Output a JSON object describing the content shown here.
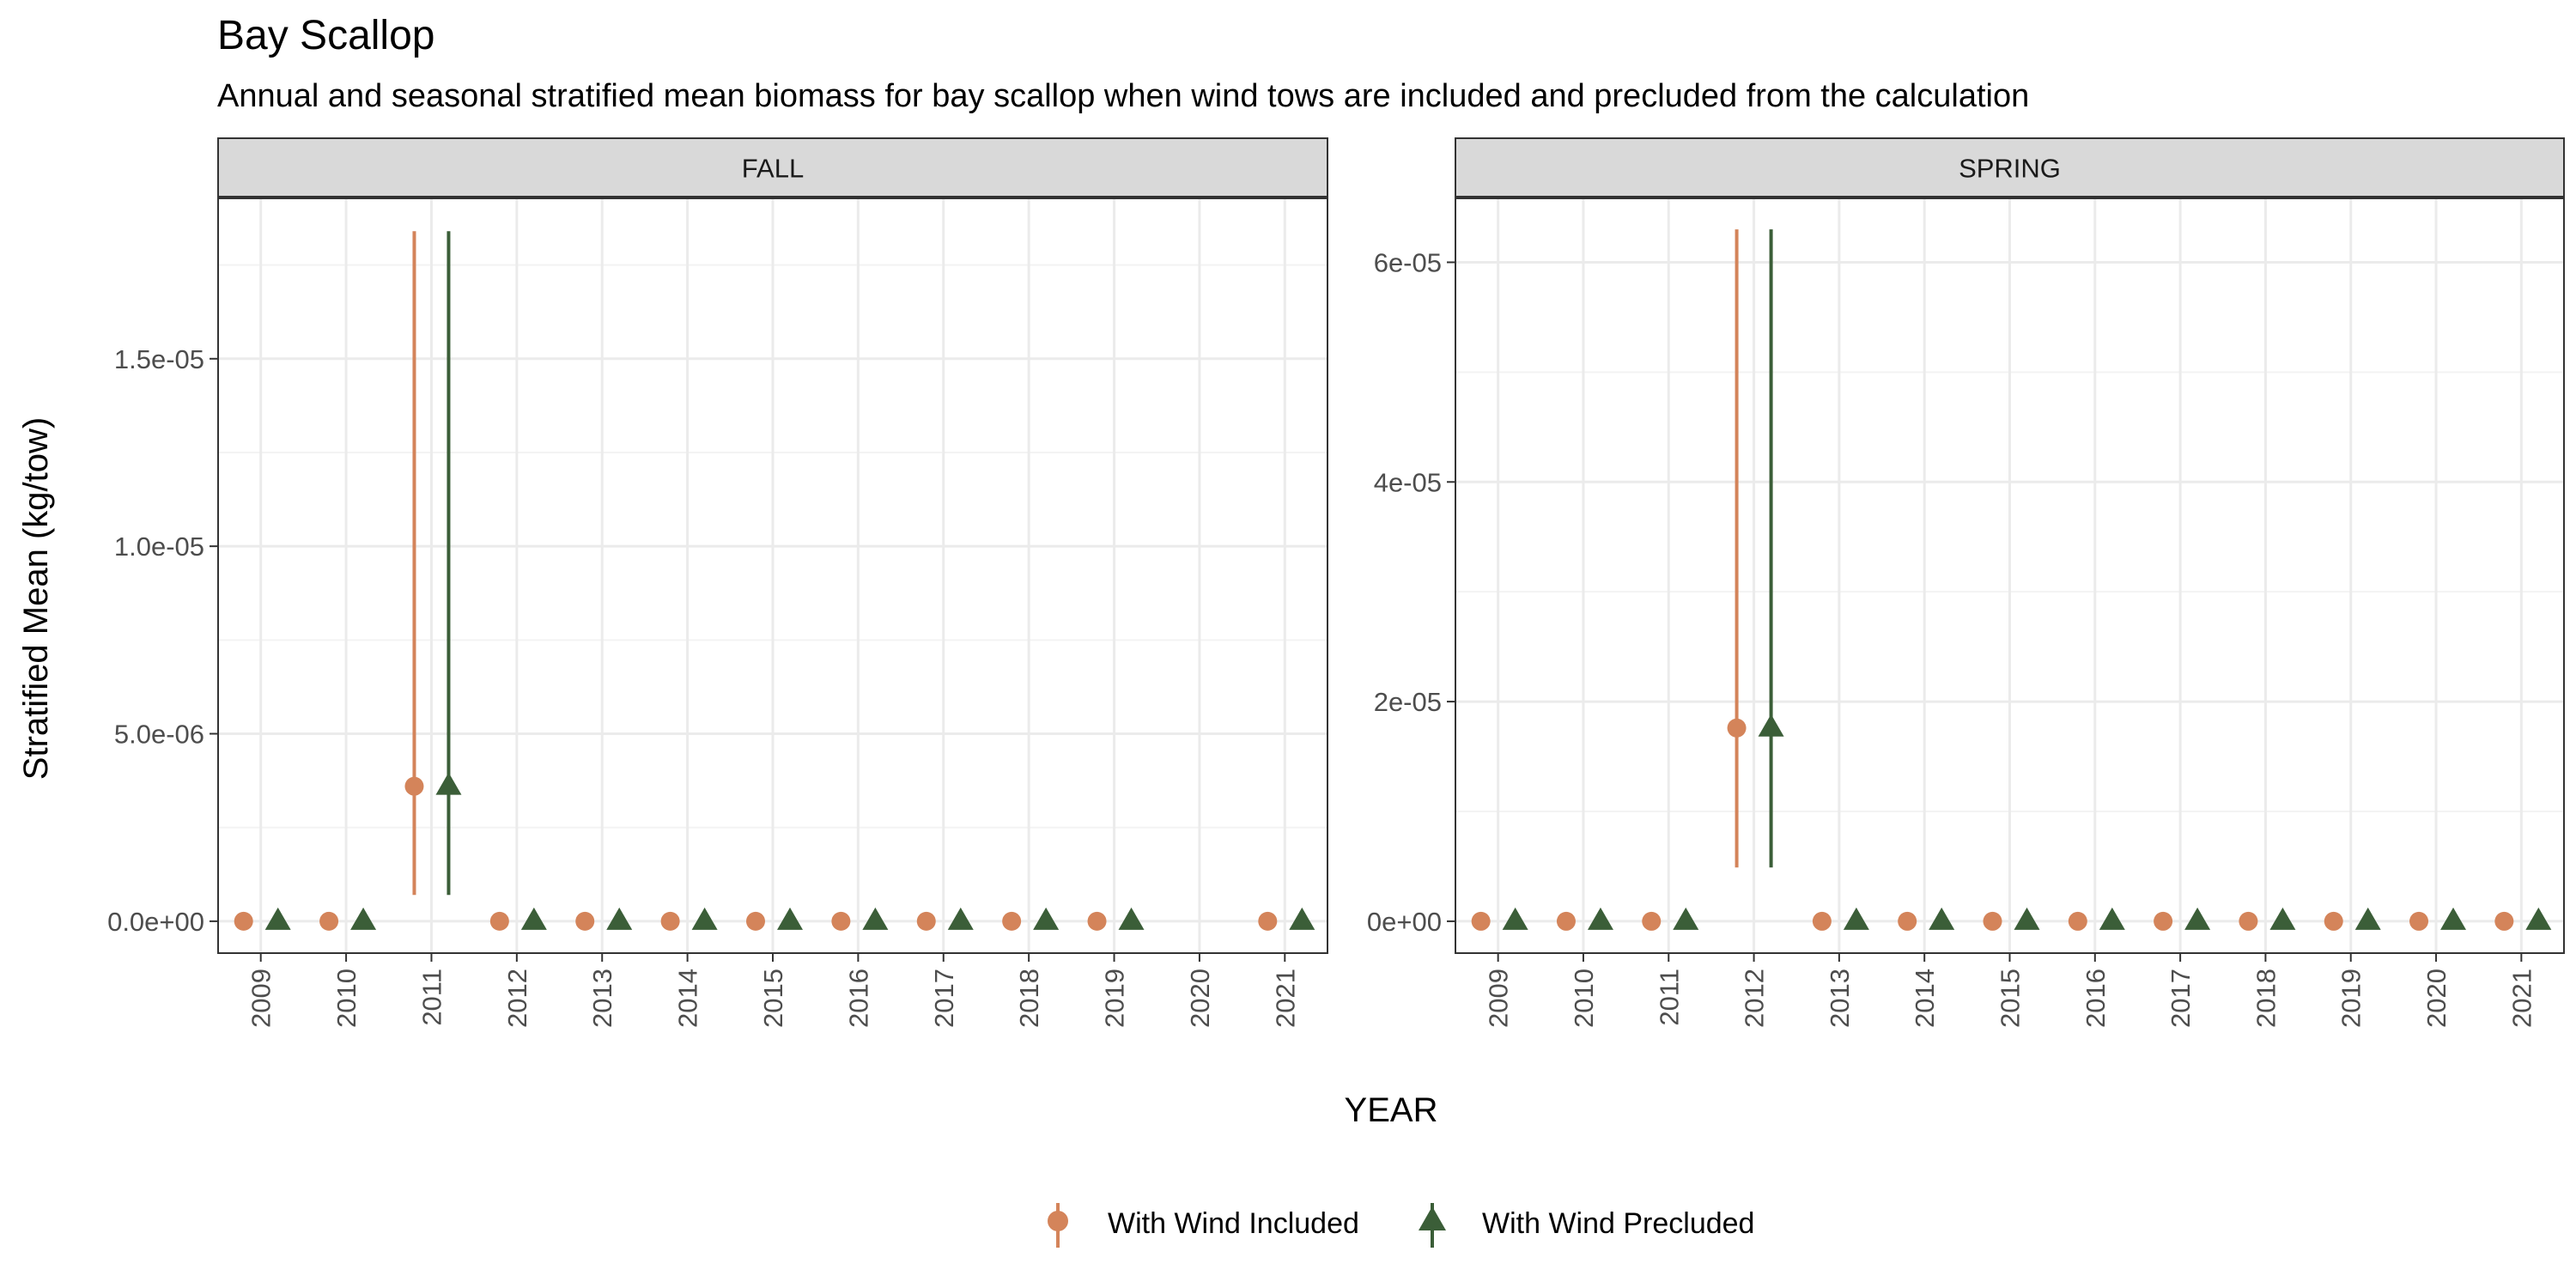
{
  "chart_data": {
    "type": "scatter",
    "title": "Bay Scallop",
    "subtitle": "Annual and seasonal stratified mean biomass for bay scallop when wind tows are included and precluded from the calculation",
    "xlabel": "YEAR",
    "ylabel": "Stratified Mean (kg/tow)",
    "grid": true,
    "legend_position": "bottom",
    "legend": [
      {
        "label": "With Wind Included",
        "color": "#D4845A",
        "shape": "circle"
      },
      {
        "label": "With Wind Precluded",
        "color": "#3B5E38",
        "shape": "triangle"
      }
    ],
    "panels": [
      {
        "name": "FALL",
        "x_categories": [
          "2009",
          "2010",
          "2011",
          "2012",
          "2013",
          "2014",
          "2015",
          "2016",
          "2017",
          "2018",
          "2019",
          "2020",
          "2021"
        ],
        "ylim": [
          -8.5e-07,
          1.93e-05
        ],
        "yticks": [
          {
            "value": 0,
            "label": "0.0e+00"
          },
          {
            "value": 5e-06,
            "label": "5.0e-06"
          },
          {
            "value": 1e-05,
            "label": "1.0e-05"
          },
          {
            "value": 1.5e-05,
            "label": "1.5e-05"
          }
        ],
        "series": [
          {
            "name": "With Wind Included",
            "points": [
              {
                "x": "2009",
                "y": 0
              },
              {
                "x": "2010",
                "y": 0
              },
              {
                "x": "2011",
                "y": 3.6e-06,
                "lo": 7e-07,
                "hi": 1.84e-05
              },
              {
                "x": "2012",
                "y": 0
              },
              {
                "x": "2013",
                "y": 0
              },
              {
                "x": "2014",
                "y": 0
              },
              {
                "x": "2015",
                "y": 0
              },
              {
                "x": "2016",
                "y": 0
              },
              {
                "x": "2017",
                "y": 0
              },
              {
                "x": "2018",
                "y": 0
              },
              {
                "x": "2019",
                "y": 0
              },
              {
                "x": "2021",
                "y": 0
              }
            ]
          },
          {
            "name": "With Wind Precluded",
            "points": [
              {
                "x": "2009",
                "y": 0
              },
              {
                "x": "2010",
                "y": 0
              },
              {
                "x": "2011",
                "y": 3.6e-06,
                "lo": 7e-07,
                "hi": 1.84e-05
              },
              {
                "x": "2012",
                "y": 0
              },
              {
                "x": "2013",
                "y": 0
              },
              {
                "x": "2014",
                "y": 0
              },
              {
                "x": "2015",
                "y": 0
              },
              {
                "x": "2016",
                "y": 0
              },
              {
                "x": "2017",
                "y": 0
              },
              {
                "x": "2018",
                "y": 0
              },
              {
                "x": "2019",
                "y": 0
              },
              {
                "x": "2021",
                "y": 0
              }
            ]
          }
        ]
      },
      {
        "name": "SPRING",
        "x_categories": [
          "2009",
          "2010",
          "2011",
          "2012",
          "2013",
          "2014",
          "2015",
          "2016",
          "2017",
          "2018",
          "2019",
          "2020",
          "2021"
        ],
        "ylim": [
          -2.9e-06,
          6.59e-05
        ],
        "yticks": [
          {
            "value": 0,
            "label": "0e+00"
          },
          {
            "value": 2e-05,
            "label": "2e-05"
          },
          {
            "value": 4e-05,
            "label": "4e-05"
          },
          {
            "value": 6e-05,
            "label": "6e-05"
          }
        ],
        "series": [
          {
            "name": "With Wind Included",
            "points": [
              {
                "x": "2009",
                "y": 0
              },
              {
                "x": "2010",
                "y": 0
              },
              {
                "x": "2011",
                "y": 0
              },
              {
                "x": "2012",
                "y": 1.76e-05,
                "lo": 4.9e-06,
                "hi": 6.3e-05
              },
              {
                "x": "2013",
                "y": 0
              },
              {
                "x": "2014",
                "y": 0
              },
              {
                "x": "2015",
                "y": 0
              },
              {
                "x": "2016",
                "y": 0
              },
              {
                "x": "2017",
                "y": 0
              },
              {
                "x": "2018",
                "y": 0
              },
              {
                "x": "2019",
                "y": 0
              },
              {
                "x": "2020",
                "y": 0
              },
              {
                "x": "2021",
                "y": 0
              }
            ]
          },
          {
            "name": "With Wind Precluded",
            "points": [
              {
                "x": "2009",
                "y": 0
              },
              {
                "x": "2010",
                "y": 0
              },
              {
                "x": "2011",
                "y": 0
              },
              {
                "x": "2012",
                "y": 1.76e-05,
                "lo": 4.9e-06,
                "hi": 6.3e-05
              },
              {
                "x": "2013",
                "y": 0
              },
              {
                "x": "2014",
                "y": 0
              },
              {
                "x": "2015",
                "y": 0
              },
              {
                "x": "2016",
                "y": 0
              },
              {
                "x": "2017",
                "y": 0
              },
              {
                "x": "2018",
                "y": 0
              },
              {
                "x": "2019",
                "y": 0
              },
              {
                "x": "2020",
                "y": 0
              },
              {
                "x": "2021",
                "y": 0
              }
            ]
          }
        ]
      }
    ]
  }
}
